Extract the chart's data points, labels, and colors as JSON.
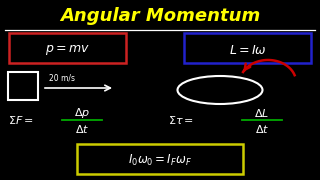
{
  "title": "Angular Momentum",
  "title_color": "#FFFF00",
  "bg_color": "#000000",
  "white": "#FFFFFF",
  "red_box": "#CC2222",
  "blue_box": "#2222CC",
  "yellow_box": "#CCCC00",
  "green": "#00AA00",
  "red_arrow": "#CC0000",
  "speed_label": "20 m/s"
}
